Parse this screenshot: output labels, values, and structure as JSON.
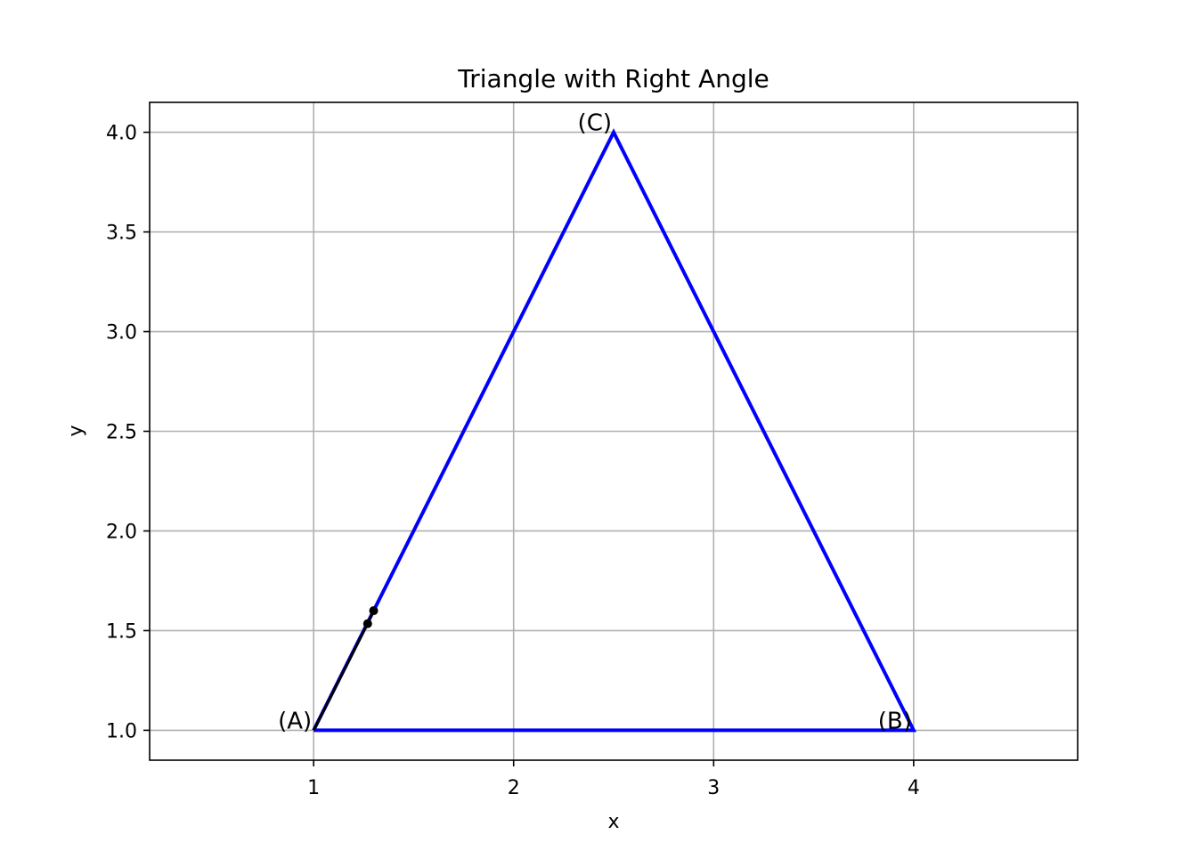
{
  "chart_data": {
    "type": "line",
    "title": "Triangle with Right Angle",
    "xlabel": "x",
    "ylabel": "y",
    "xlim": [
      0.18,
      4.82
    ],
    "ylim": [
      0.85,
      4.15
    ],
    "grid": true,
    "legend": "none",
    "x_ticks": [
      1,
      2,
      3,
      4
    ],
    "x_tick_labels": [
      "1",
      "2",
      "3",
      "4"
    ],
    "y_ticks": [
      1.0,
      1.5,
      2.0,
      2.5,
      3.0,
      3.5,
      4.0
    ],
    "y_tick_labels": [
      "1.0",
      "1.5",
      "2.0",
      "2.5",
      "3.0",
      "3.5",
      "4.0"
    ],
    "series": [
      {
        "kind": "polyline",
        "color": "#0000ff",
        "points": [
          [
            1,
            1
          ],
          [
            4,
            1
          ],
          [
            2.5,
            4
          ],
          [
            1,
            1
          ]
        ]
      },
      {
        "kind": "right-angle-marker",
        "color": "#000000",
        "points": [
          [
            1,
            1
          ],
          [
            1.27,
            1.535
          ],
          [
            1.3,
            1.6
          ]
        ],
        "markers": [
          [
            1.27,
            1.535
          ],
          [
            1.3,
            1.6
          ]
        ]
      }
    ],
    "annotations": [
      {
        "text": "(A)",
        "x": 1,
        "y": 1,
        "anchor": "end"
      },
      {
        "text": "(B)",
        "x": 4,
        "y": 1,
        "anchor": "end"
      },
      {
        "text": "(C)",
        "x": 2.5,
        "y": 4,
        "anchor": "end"
      }
    ],
    "colors": {
      "triangle": "#0000ff",
      "marker": "#000000",
      "grid": "#b0b0b0"
    }
  }
}
